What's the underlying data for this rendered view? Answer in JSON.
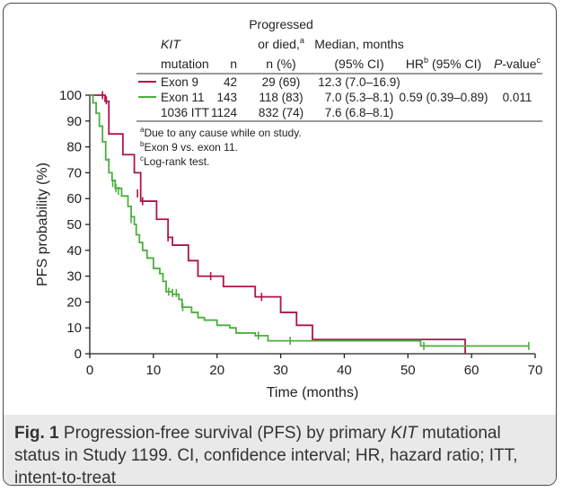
{
  "chart_data": {
    "type": "line",
    "subtype": "kaplan-meier step curve",
    "xlabel": "Time (months)",
    "ylabel": "PFS probability (%)",
    "xlim": [
      0,
      70
    ],
    "ylim": [
      0,
      100
    ],
    "xticks": [
      0,
      10,
      20,
      30,
      40,
      50,
      60,
      70
    ],
    "yticks": [
      0,
      10,
      20,
      30,
      40,
      50,
      60,
      70,
      80,
      90,
      100
    ],
    "series": [
      {
        "name": "Exon 9",
        "color": "#b1124b",
        "steps": [
          [
            0,
            100
          ],
          [
            2.4,
            97.6
          ],
          [
            3,
            85
          ],
          [
            5.2,
            77
          ],
          [
            7,
            70
          ],
          [
            8,
            59
          ],
          [
            10.5,
            52
          ],
          [
            12.3,
            45
          ],
          [
            13,
            42
          ],
          [
            15.5,
            36
          ],
          [
            17,
            30
          ],
          [
            21,
            26
          ],
          [
            26,
            22
          ],
          [
            30,
            16
          ],
          [
            32.5,
            11
          ],
          [
            35,
            5.5
          ],
          [
            59,
            0
          ]
        ],
        "censored": [
          [
            2,
            100
          ],
          [
            2.6,
            98
          ],
          [
            7.5,
            62
          ],
          [
            8.3,
            59
          ],
          [
            12.3,
            45
          ],
          [
            19,
            30
          ],
          [
            27,
            22
          ]
        ]
      },
      {
        "name": "Exon 11",
        "color": "#4cae3f",
        "steps": [
          [
            0,
            100
          ],
          [
            0.5,
            97
          ],
          [
            1,
            93
          ],
          [
            1.5,
            88
          ],
          [
            2,
            82
          ],
          [
            2.5,
            75
          ],
          [
            3,
            70
          ],
          [
            3.5,
            67
          ],
          [
            4,
            64
          ],
          [
            5,
            61
          ],
          [
            6,
            57
          ],
          [
            6.5,
            53
          ],
          [
            7,
            50
          ],
          [
            7.3,
            46
          ],
          [
            7.8,
            43
          ],
          [
            8.3,
            40
          ],
          [
            9,
            37
          ],
          [
            10,
            33
          ],
          [
            11,
            31
          ],
          [
            11.5,
            28
          ],
          [
            12,
            24
          ],
          [
            13,
            23
          ],
          [
            14,
            21
          ],
          [
            14.5,
            18
          ],
          [
            16,
            16
          ],
          [
            17,
            14
          ],
          [
            18,
            13
          ],
          [
            20,
            11
          ],
          [
            22,
            10
          ],
          [
            23,
            8
          ],
          [
            26,
            7
          ],
          [
            28,
            5
          ],
          [
            52,
            3
          ],
          [
            69,
            3
          ]
        ],
        "censored": [
          [
            3,
            74
          ],
          [
            3.6,
            66
          ],
          [
            4.1,
            64
          ],
          [
            4.5,
            63
          ],
          [
            6.5,
            52
          ],
          [
            12.4,
            24
          ],
          [
            13,
            23.5
          ],
          [
            13.6,
            23.5
          ],
          [
            14.6,
            18
          ],
          [
            26.5,
            7
          ],
          [
            31.5,
            5
          ],
          [
            52.5,
            3
          ],
          [
            69,
            3
          ]
        ]
      }
    ],
    "table": {
      "headers": {
        "mutation_top": "KIT",
        "mutation_bottom": "mutation",
        "n": "n",
        "progressed_1": "Progressed",
        "progressed_2": "or died,",
        "progressed_sup": "a",
        "progressed_3": "n (%)",
        "median_1": "Median, months",
        "median_2": "(95% CI)",
        "hr_1": "HR",
        "hr_sup": "b",
        "hr_2": " (95% CI)",
        "p_1": "P",
        "p_2": "-value",
        "p_sup": "c"
      },
      "rows": [
        {
          "label": "Exon 9",
          "n": "42",
          "progressed": "29 (69)",
          "median": "12.3 (7.0–16.9)",
          "color": "#b1124b"
        },
        {
          "label": "Exon 11",
          "n": "143",
          "progressed": "118 (83)",
          "median": "7.0 (5.3–8.1)",
          "color": "#4cae3f"
        },
        {
          "label": "1036 ITT",
          "n": "1124",
          "progressed": "832 (74)",
          "median": "7.6 (6.8–8.1)",
          "color": ""
        }
      ],
      "hr_value": "0.59 (0.39–0.89)",
      "p_value": "0.011"
    },
    "footnotes": [
      {
        "sup": "a",
        "text": "Due to any cause while on study."
      },
      {
        "sup": "b",
        "text": "Exon 9 vs. exon 11."
      },
      {
        "sup": "c",
        "text": "Log-rank test."
      }
    ]
  },
  "caption": {
    "fig_label": "Fig. 1",
    "text_1": " Progression-free survival (PFS) by primary ",
    "text_italic": "KIT",
    "text_2": " mutational status in Study 1199. CI, confidence interval; HR, hazard ratio; ITT, intent-to-treat"
  }
}
